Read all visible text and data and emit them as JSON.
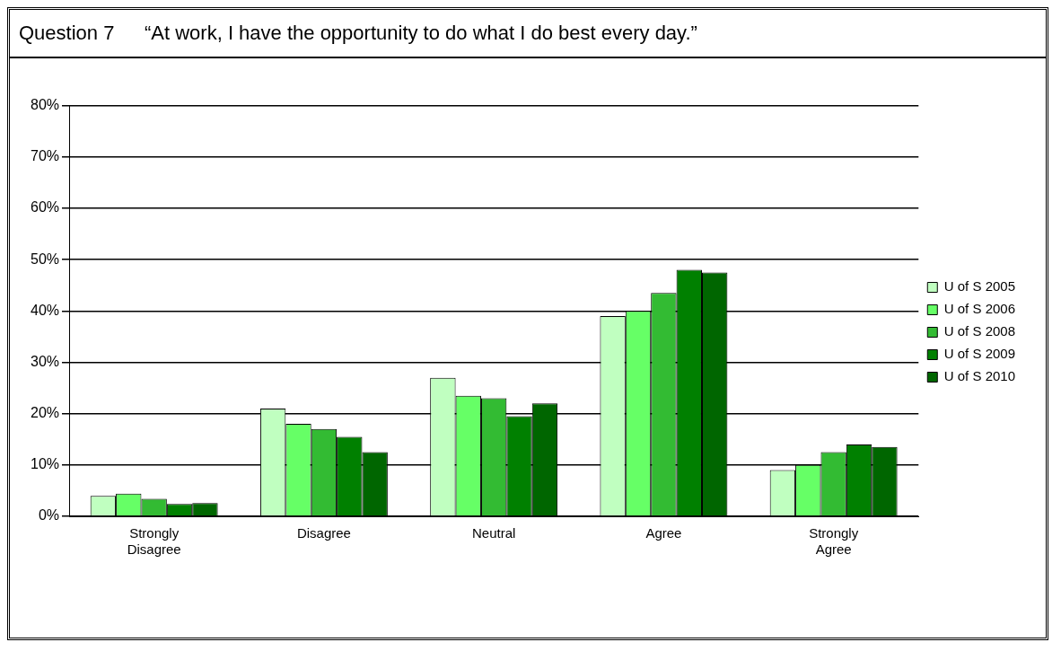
{
  "chart_data": {
    "type": "bar",
    "title": "Question 7",
    "subtitle": "“At work, I have the opportunity to do what I do best every day.”",
    "categories": [
      "Strongly Disagree",
      "Disagree",
      "Neutral",
      "Agree",
      "Strongly Agree"
    ],
    "series": [
      {
        "name": "U of S 2005",
        "color": "#c0ffc0",
        "values": [
          4,
          21,
          27,
          39,
          9
        ]
      },
      {
        "name": "U of S 2006",
        "color": "#66ff66",
        "values": [
          4.4,
          18,
          23.5,
          40,
          10
        ]
      },
      {
        "name": "U of S 2008",
        "color": "#33bb33",
        "values": [
          3.4,
          17,
          23,
          43.5,
          12.5
        ]
      },
      {
        "name": "U of S 2009",
        "color": "#008000",
        "values": [
          2.4,
          15.5,
          19.5,
          48,
          14
        ]
      },
      {
        "name": "U of S 2010",
        "color": "#006600",
        "values": [
          2.6,
          12.5,
          22,
          47.5,
          13.5
        ]
      }
    ],
    "ylim": [
      0,
      80
    ],
    "yticks": [
      {
        "value": 0,
        "label": "0%"
      },
      {
        "value": 10,
        "label": "10%"
      },
      {
        "value": 20,
        "label": "20%"
      },
      {
        "value": 30,
        "label": "30%"
      },
      {
        "value": 40,
        "label": "40%"
      },
      {
        "value": 50,
        "label": "50%"
      },
      {
        "value": 60,
        "label": "60%"
      },
      {
        "value": 70,
        "label": "70%"
      },
      {
        "value": 80,
        "label": "80%"
      }
    ],
    "grid": "y",
    "legend": "right"
  }
}
